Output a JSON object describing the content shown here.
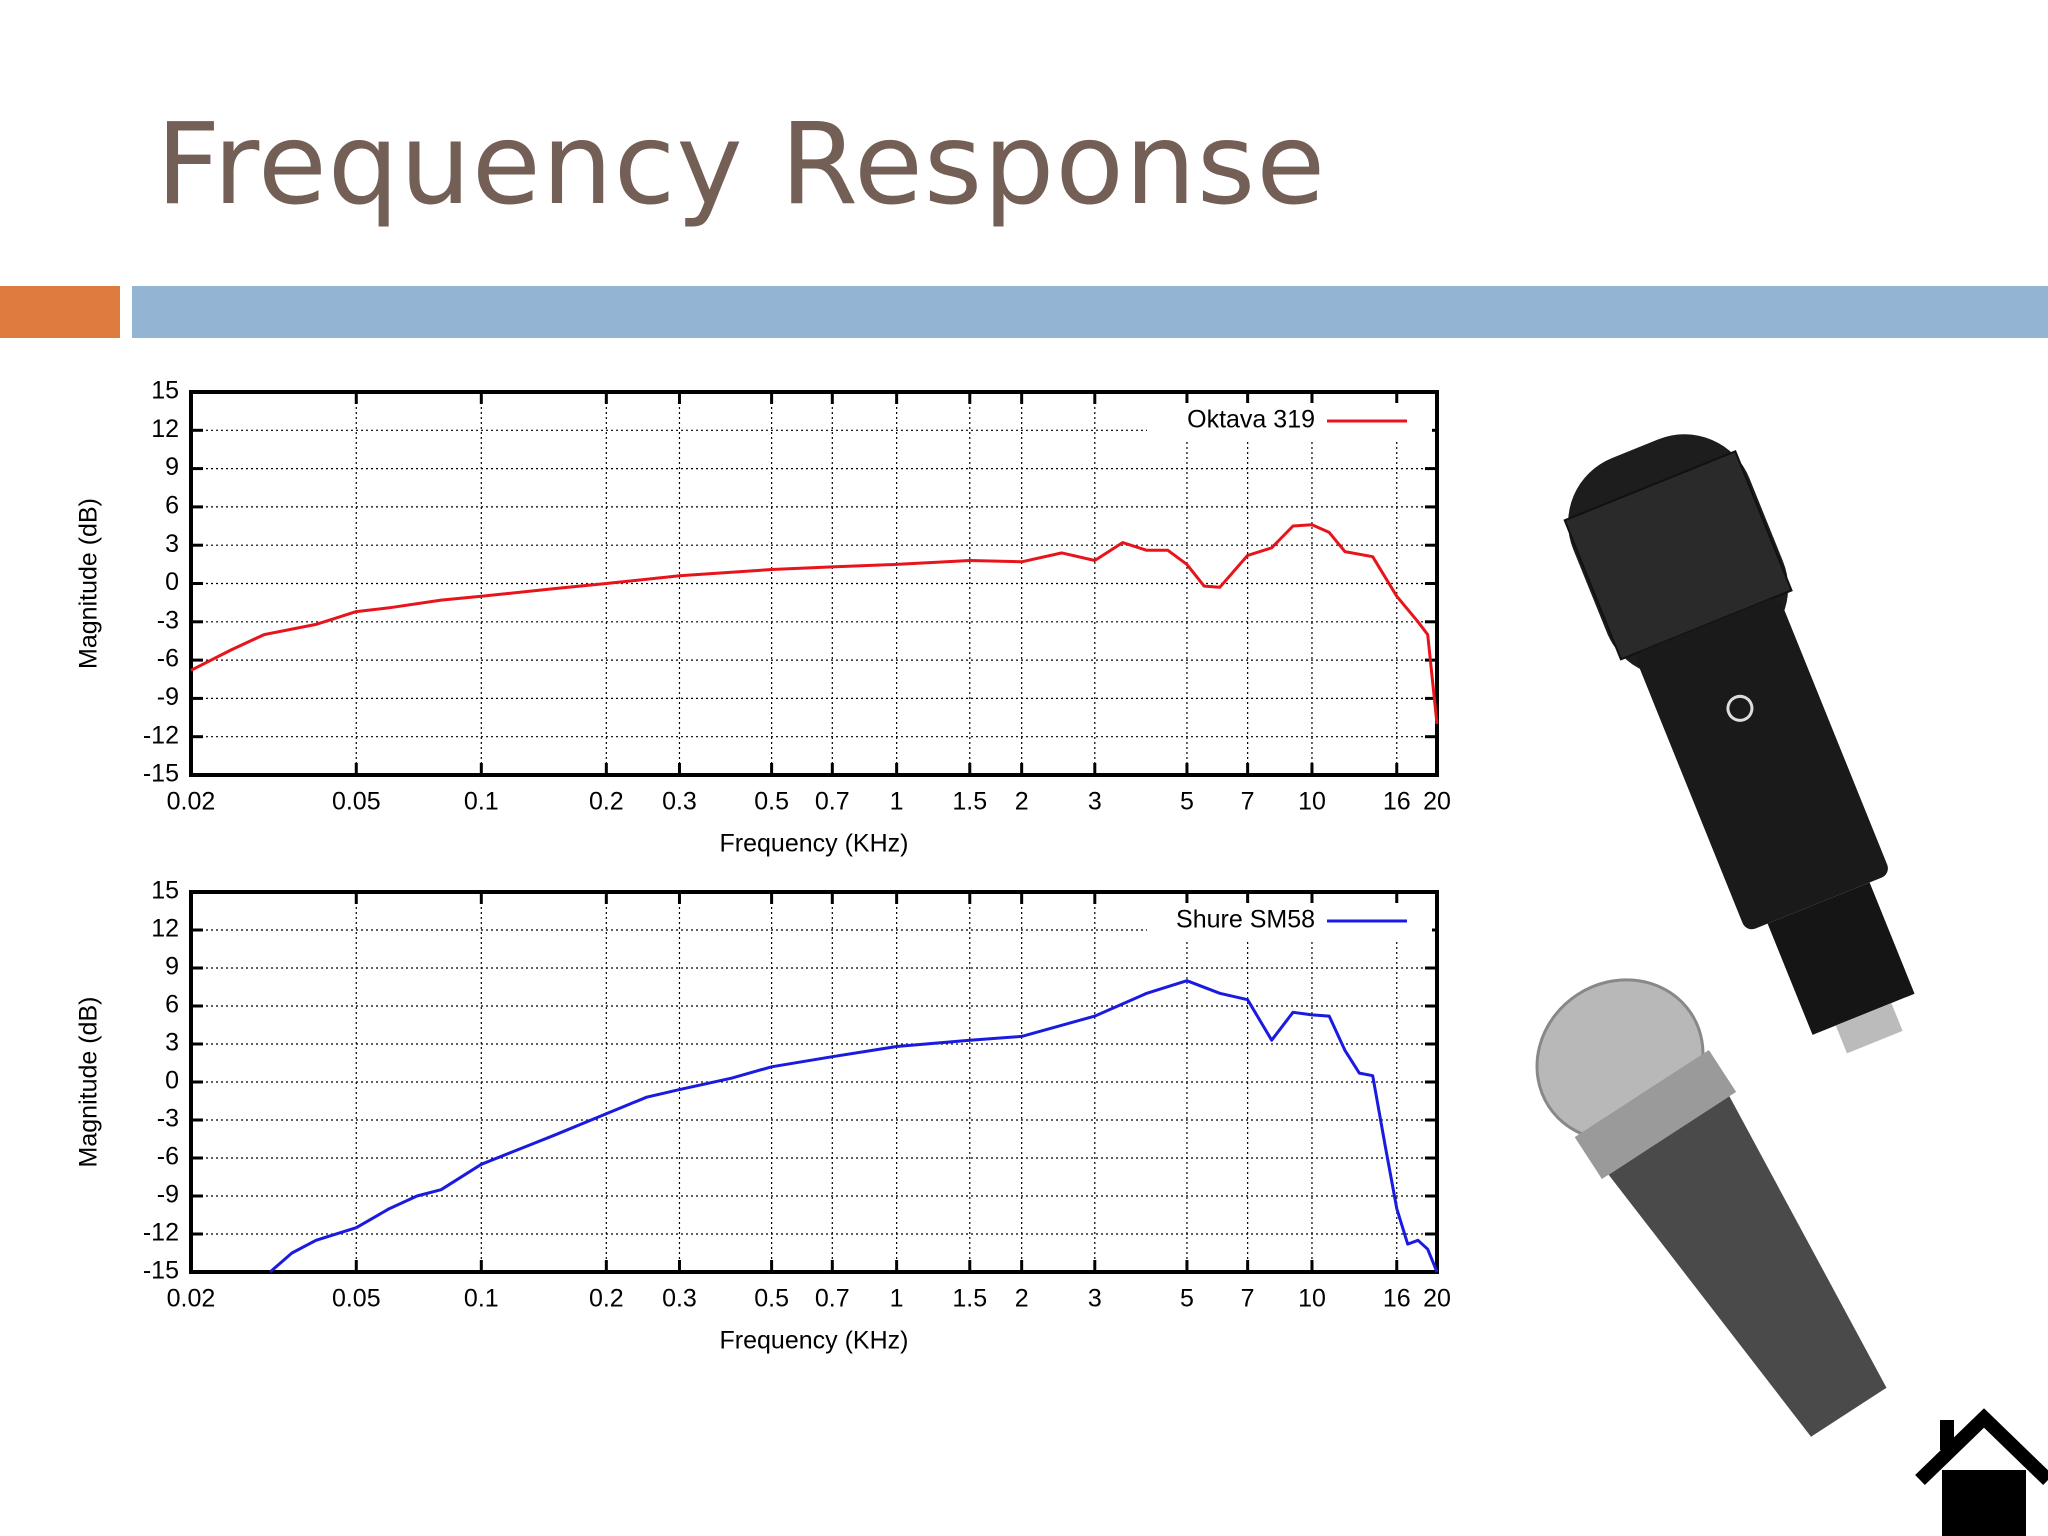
{
  "slide": {
    "title": "Frequency Response"
  },
  "chart_data": [
    {
      "type": "line",
      "x_label": "Frequency (KHz)",
      "y_label": "Magnitude (dB)",
      "log_x": true,
      "grid": true,
      "legend": "top-right",
      "xlim": [
        0.02,
        20
      ],
      "xticks": [
        0.02,
        0.05,
        0.1,
        0.2,
        0.3,
        0.5,
        0.7,
        1,
        1.5,
        2,
        3,
        5,
        7,
        10,
        16,
        20
      ],
      "ylim": [
        -15,
        15
      ],
      "yticks": [
        -15,
        -12,
        -9,
        -6,
        -3,
        0,
        3,
        6,
        9,
        12,
        15
      ],
      "x": [
        0.02,
        0.025,
        0.03,
        0.04,
        0.05,
        0.06,
        0.08,
        0.1,
        0.15,
        0.2,
        0.3,
        0.5,
        0.7,
        1,
        1.5,
        2,
        2.5,
        3,
        3.5,
        4,
        4.5,
        5,
        5.5,
        6,
        7,
        8,
        9,
        10,
        11,
        12,
        14,
        16,
        18,
        19,
        20
      ],
      "series": [
        {
          "name": "Oktava 319",
          "color": "#e8141c",
          "values": [
            -6.8,
            -5.2,
            -4,
            -3.2,
            -2.2,
            -1.9,
            -1.3,
            -1,
            -0.4,
            0,
            0.6,
            1.1,
            1.3,
            1.5,
            1.8,
            1.7,
            2.4,
            1.8,
            3.2,
            2.6,
            2.6,
            1.5,
            -0.2,
            -0.3,
            2.2,
            2.8,
            4.5,
            4.6,
            4,
            2.5,
            2.1,
            -1,
            -3,
            -4,
            -11
          ]
        }
      ]
    },
    {
      "type": "line",
      "x_label": "Frequency (KHz)",
      "y_label": "Magnitude (dB)",
      "log_x": true,
      "grid": true,
      "legend": "top-right",
      "xlim": [
        0.02,
        20
      ],
      "xticks": [
        0.02,
        0.05,
        0.1,
        0.2,
        0.3,
        0.5,
        0.7,
        1,
        1.5,
        2,
        3,
        5,
        7,
        10,
        16,
        20
      ],
      "ylim": [
        -15,
        15
      ],
      "yticks": [
        -15,
        -12,
        -9,
        -6,
        -3,
        0,
        3,
        6,
        9,
        12,
        15
      ],
      "x": [
        0.031,
        0.035,
        0.04,
        0.05,
        0.06,
        0.07,
        0.08,
        0.1,
        0.15,
        0.2,
        0.25,
        0.3,
        0.4,
        0.5,
        0.7,
        1,
        1.5,
        2,
        3,
        4,
        5,
        6,
        7,
        8,
        9,
        10,
        11,
        12,
        13,
        14,
        15,
        16,
        17,
        18,
        19,
        20
      ],
      "series": [
        {
          "name": "Shure SM58",
          "color": "#1a1ae0",
          "values": [
            -15,
            -13.5,
            -12.5,
            -11.5,
            -10,
            -9,
            -8.5,
            -6.5,
            -4.2,
            -2.5,
            -1.2,
            -0.6,
            0.3,
            1.2,
            2,
            2.8,
            3.3,
            3.6,
            5.2,
            7,
            8,
            7,
            6.5,
            3.3,
            5.5,
            5.3,
            5.2,
            2.5,
            0.7,
            0.5,
            -5,
            -10,
            -12.8,
            -12.5,
            -13.2,
            -15
          ]
        }
      ]
    }
  ]
}
